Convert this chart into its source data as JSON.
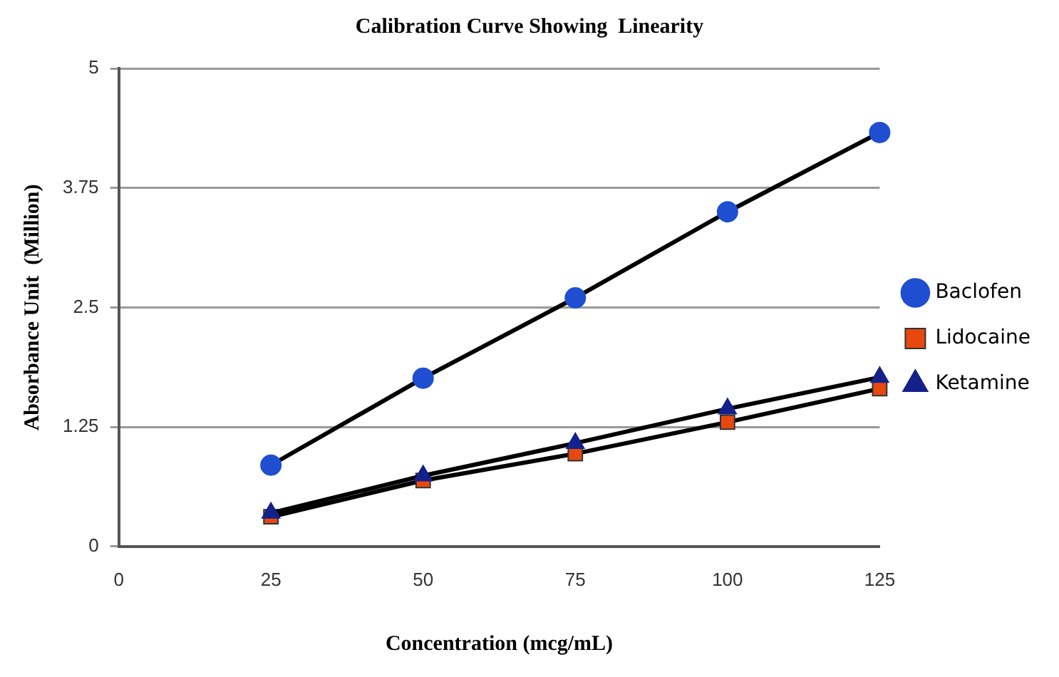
{
  "chart_data": {
    "type": "line",
    "title": "Calibration Curve Showing  Linearity",
    "xlabel": "Concentration (mcg/mL)",
    "ylabel": "Absorbance Unit  (Million)",
    "x": [
      25,
      50,
      75,
      100,
      125
    ],
    "series": [
      {
        "name": "Baclofen",
        "color": "#1f4fd0",
        "marker": "circle",
        "values": [
          0.85,
          1.76,
          2.6,
          3.5,
          4.33
        ]
      },
      {
        "name": "Lidocaine",
        "color": "#e8480f",
        "marker": "square",
        "values": [
          0.31,
          0.69,
          0.97,
          1.3,
          1.65
        ]
      },
      {
        "name": "Ketamine",
        "color": "#14218a",
        "marker": "triangle",
        "values": [
          0.35,
          0.74,
          1.08,
          1.44,
          1.77
        ]
      }
    ],
    "xlim": [
      0,
      125
    ],
    "xticks": [
      0,
      25,
      50,
      75,
      100,
      125
    ],
    "ylim": [
      0,
      5
    ],
    "yticks": [
      0,
      1.25,
      2.5,
      3.75,
      5
    ],
    "grid": "y",
    "legend": "right",
    "line_style": "solid"
  }
}
